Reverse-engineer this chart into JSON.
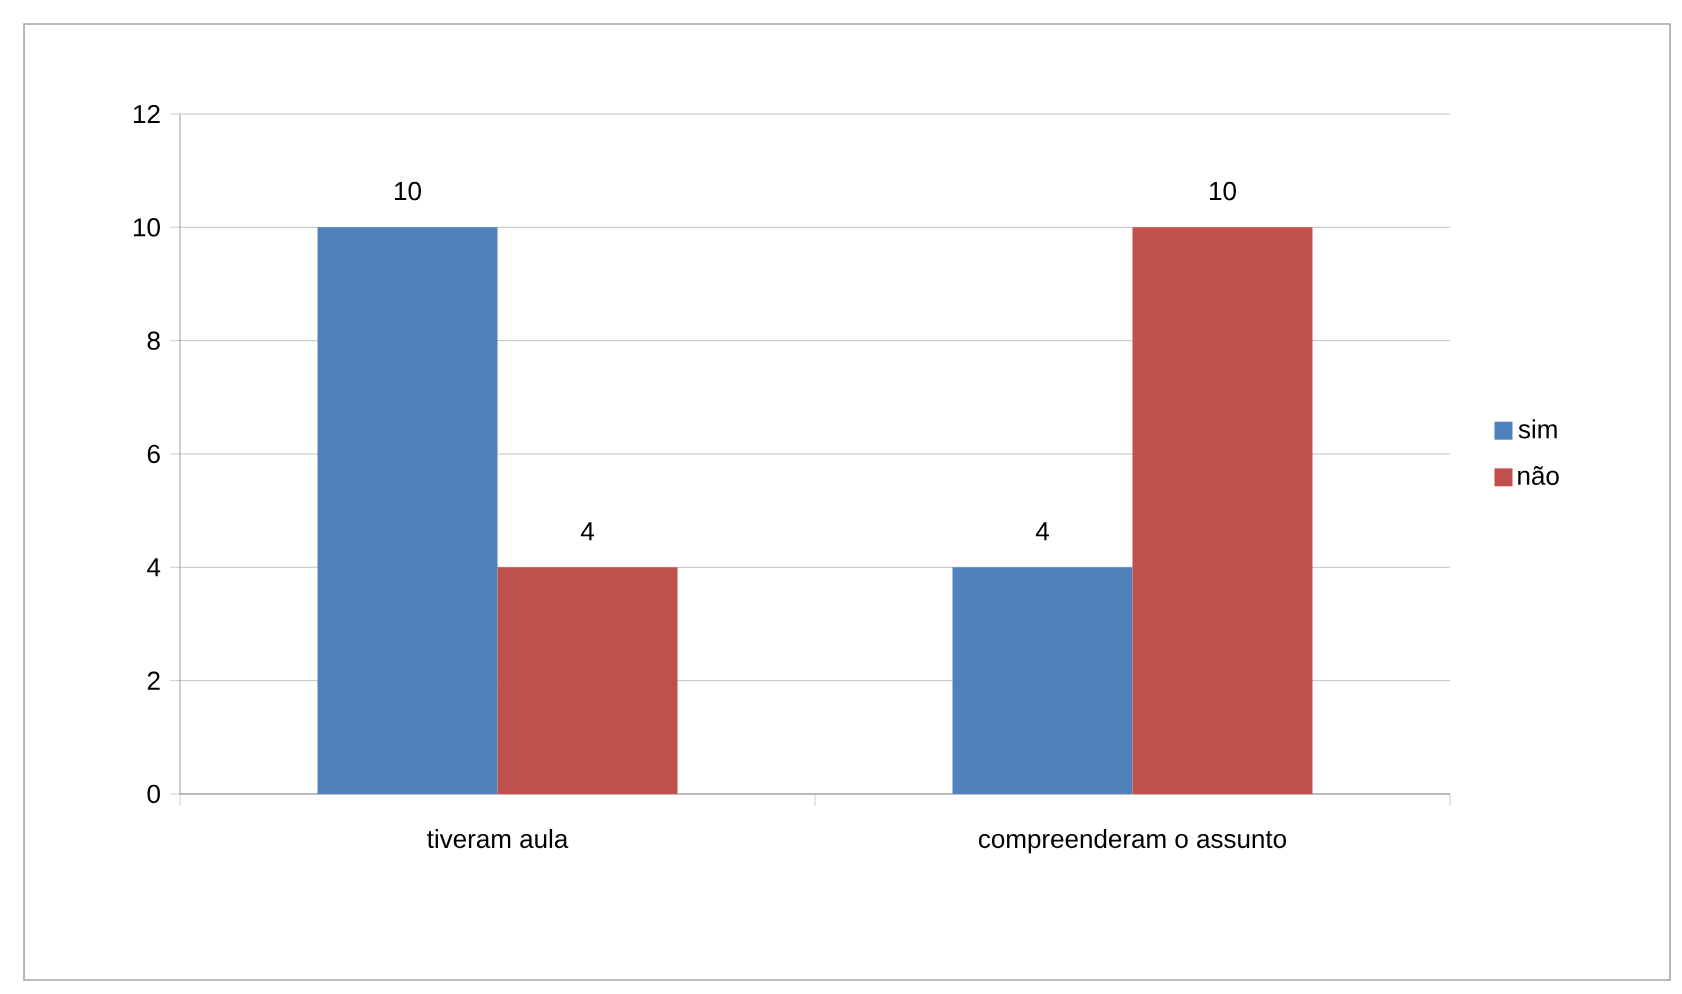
{
  "chart_data": {
    "type": "bar",
    "categories": [
      "tiveram aula",
      "compreenderam o assunto"
    ],
    "series": [
      {
        "name": "sim",
        "color": "#4f81bd",
        "values": [
          10,
          4
        ]
      },
      {
        "name": "não",
        "color": "#c0504d",
        "values": [
          4,
          10
        ]
      }
    ],
    "ylim": [
      0,
      12
    ],
    "yticks": [
      0,
      2,
      4,
      6,
      8,
      10,
      12
    ],
    "grid": "y",
    "legend": "right",
    "data_labels": true
  }
}
